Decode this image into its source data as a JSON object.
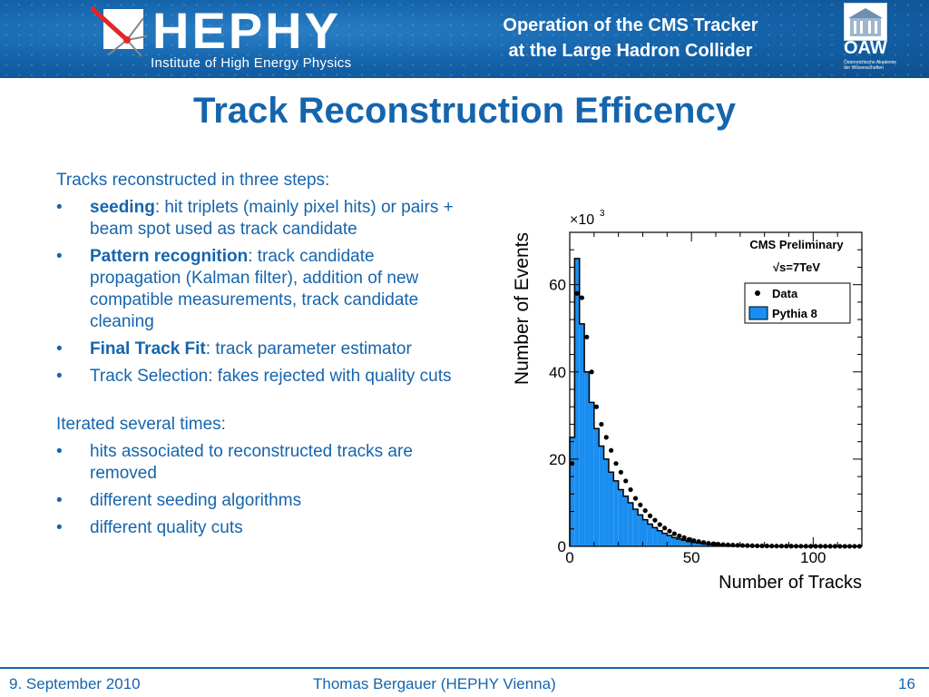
{
  "header": {
    "logo_name": "HEPHY",
    "logo_subtitle": "Institute of High Energy Physics",
    "title_line1": "Operation of the CMS Tracker",
    "title_line2": "at the Large Hadron Collider",
    "academy_logo": "OAW",
    "academy_name_line1": "Österreichische Akademie",
    "academy_name_line2": "der Wissenschaften"
  },
  "slide": {
    "title": "Track Reconstruction Efficency",
    "intro1": "Tracks reconstructed in three steps:",
    "steps": [
      {
        "bold": "seeding",
        "text": ": hit triplets (mainly pixel hits) or pairs + beam spot used as track candidate"
      },
      {
        "bold": "Pattern recognition",
        "text": ": track candidate propagation (Kalman filter), addition of new compatible measurements, track candidate cleaning"
      },
      {
        "bold": "Final Track Fit",
        "text": ": track parameter estimator"
      },
      {
        "bold": "",
        "text": "Track Selection: fakes rejected with quality cuts"
      }
    ],
    "intro2": "Iterated several times:",
    "iterations": [
      "hits associated to reconstructed tracks are removed",
      "different seeding algorithms",
      "different quality cuts"
    ]
  },
  "chart_data": {
    "type": "bar",
    "title": "CMS Preliminary",
    "subtitle": "√s=7TeV",
    "xlabel": "Number of Tracks",
    "ylabel": "Number of Events",
    "y_multiplier": "×10",
    "y_multiplier_exp": "3",
    "xlim": [
      0,
      120
    ],
    "ylim": [
      0,
      72
    ],
    "xticks": [
      0,
      50,
      100
    ],
    "yticks": [
      0,
      20,
      40,
      60
    ],
    "legend_position": "top-right",
    "bin_width": 2,
    "series": [
      {
        "name": "Data",
        "style": "points",
        "color": "#000000",
        "x": [
          1,
          3,
          5,
          7,
          9,
          11,
          13,
          15,
          17,
          19,
          21,
          23,
          25,
          27,
          29,
          31,
          33,
          35,
          37,
          39,
          41,
          43,
          45,
          47,
          49,
          51,
          53,
          55,
          57,
          59,
          61,
          63,
          65,
          67,
          69,
          71,
          73,
          75,
          77,
          79,
          81,
          83,
          85,
          87,
          89,
          91,
          93,
          95,
          97,
          99,
          101,
          103,
          105,
          107,
          109,
          111,
          113,
          115,
          117,
          119
        ],
        "y": [
          19,
          58,
          57,
          48,
          40,
          32,
          28,
          25,
          22,
          19,
          17,
          15,
          13,
          11,
          9.5,
          8.2,
          7,
          6,
          5,
          4.2,
          3.5,
          2.9,
          2.4,
          2,
          1.6,
          1.3,
          1.1,
          0.9,
          0.7,
          0.6,
          0.5,
          0.4,
          0.35,
          0.3,
          0.25,
          0.2,
          0.18,
          0.15,
          0.12,
          0.1,
          0.09,
          0.08,
          0.07,
          0.06,
          0.05,
          0.05,
          0.04,
          0.04,
          0.03,
          0.03,
          0.03,
          0.02,
          0.02,
          0.02,
          0.02,
          0.01,
          0.01,
          0.01,
          0.01,
          0.01
        ]
      },
      {
        "name": "Pythia 8",
        "style": "filled-histogram",
        "color": "#1a8ef0",
        "x": [
          1,
          3,
          5,
          7,
          9,
          11,
          13,
          15,
          17,
          19,
          21,
          23,
          25,
          27,
          29,
          31,
          33,
          35,
          37,
          39,
          41,
          43,
          45,
          47,
          49,
          51,
          53,
          55,
          57,
          59,
          61,
          63,
          65,
          67,
          69,
          71,
          73,
          75,
          77,
          79,
          81,
          83,
          85,
          87,
          89,
          91,
          93,
          95,
          97,
          99,
          101,
          103,
          105,
          107,
          109,
          111,
          113,
          115,
          117,
          119
        ],
        "y": [
          25,
          66,
          51,
          40,
          33,
          27,
          23,
          20,
          17,
          15,
          13,
          11.5,
          10,
          8.5,
          7.2,
          6.1,
          5.1,
          4.3,
          3.6,
          3,
          2.5,
          2,
          1.7,
          1.4,
          1.1,
          0.9,
          0.75,
          0.6,
          0.5,
          0.4,
          0.33,
          0.27,
          0.22,
          0.18,
          0.15,
          0.12,
          0.1,
          0.08,
          0.07,
          0.06,
          0.05,
          0.04,
          0.03,
          0.03,
          0.02,
          0.02,
          0.02,
          0.01,
          0.01,
          0.01,
          0.01,
          0.01,
          0.01,
          0,
          0,
          0,
          0,
          0,
          0,
          0
        ]
      }
    ]
  },
  "footer": {
    "date": "9. September 2010",
    "author": "Thomas Bergauer (HEPHY Vienna)",
    "page": "16"
  }
}
